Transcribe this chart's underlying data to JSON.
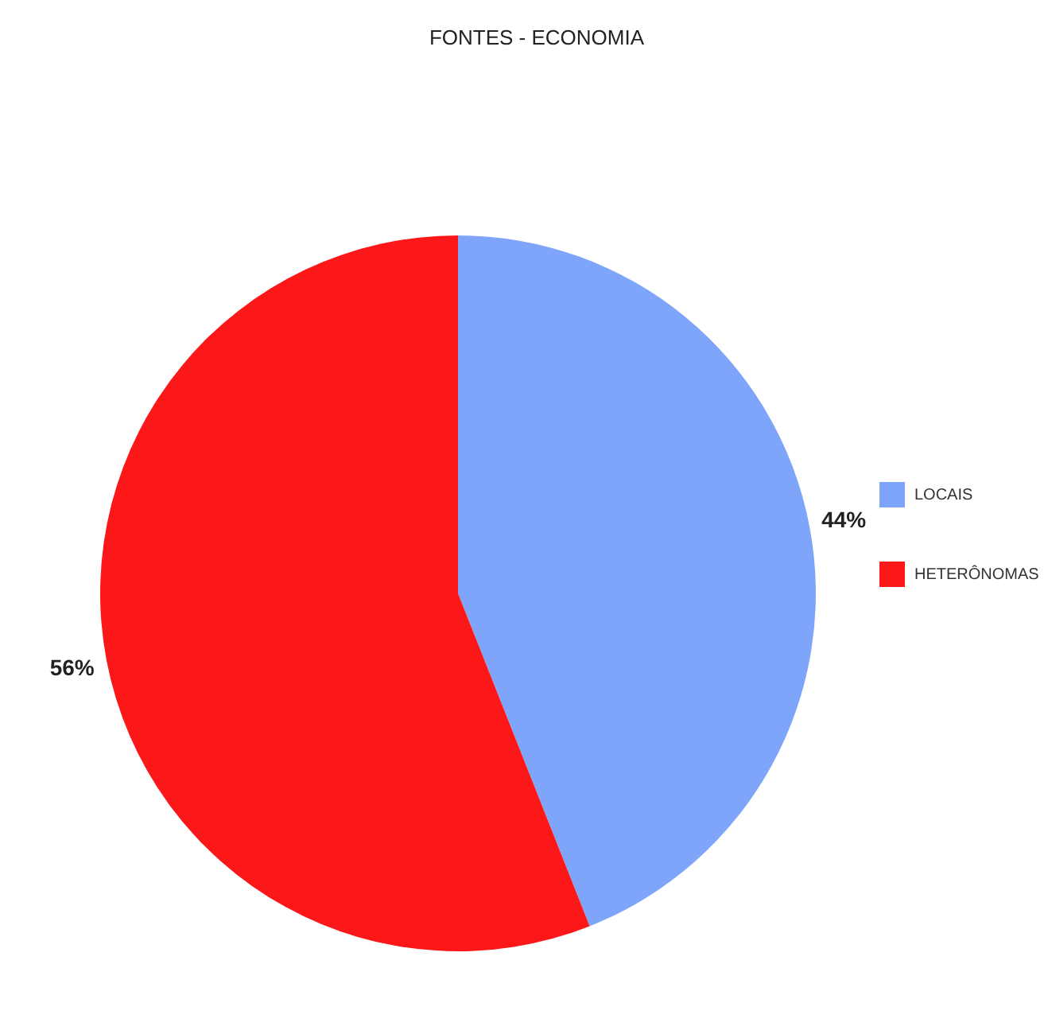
{
  "chart_data": {
    "type": "pie",
    "title": "FONTES - ECONOMIA",
    "categories": [
      "LOCAIS",
      "HETERÔNOMAS"
    ],
    "values": [
      44,
      56
    ],
    "colors": [
      "#7fa5fb",
      "#fc1719"
    ],
    "value_labels": [
      "44%",
      "56%"
    ],
    "legend": "right"
  }
}
